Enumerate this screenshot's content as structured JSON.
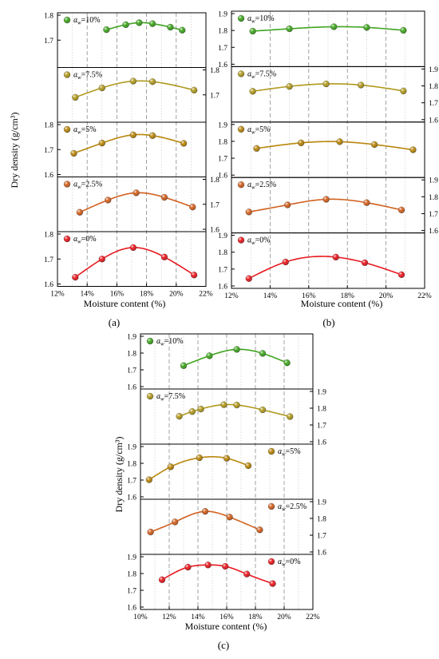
{
  "figure": {
    "ylabel": "Dry density (g/cm³)",
    "xlabel": "Moisture content (%)"
  },
  "chart_data": [
    {
      "type": "scatter",
      "caption": "(a)",
      "xlabel": "Moisture content (%)",
      "ylabel": "Dry density (g/cm³)",
      "xlim": [
        12,
        22
      ],
      "x_ticks": [
        "12%",
        "14%",
        "16%",
        "18%",
        "20%",
        "22%"
      ],
      "grid": "vertical dashed",
      "panels": [
        {
          "label": "a_w=10%",
          "color": "#3fa51e",
          "ylim": [
            1.6,
            1.8
          ],
          "y_ticks": [
            "1.7",
            "1.8"
          ],
          "axis_side": "left",
          "x": [
            15.3,
            16.6,
            17.5,
            18.4,
            19.6,
            20.4
          ],
          "y": [
            1.742,
            1.762,
            1.77,
            1.766,
            1.752,
            1.74
          ]
        },
        {
          "label": "a_w=7.5%",
          "color": "#b09a1e",
          "ylim": [
            1.6,
            1.8
          ],
          "y_ticks": [
            "1.7",
            "1.8"
          ],
          "axis_side": "right",
          "x": [
            13.2,
            15.0,
            17.1,
            18.4,
            21.2
          ],
          "y": [
            1.69,
            1.728,
            1.755,
            1.753,
            1.719
          ]
        },
        {
          "label": "a_w=5%",
          "color": "#b8860b",
          "ylim": [
            1.6,
            1.8
          ],
          "y_ticks": [
            "1.6",
            "1.7",
            "1.8"
          ],
          "axis_side": "left",
          "x": [
            13.1,
            15.0,
            17.1,
            18.4,
            20.5
          ],
          "y": [
            1.685,
            1.726,
            1.759,
            1.756,
            1.725
          ]
        },
        {
          "label": "a_w=2.5%",
          "color": "#d1601e",
          "ylim": [
            1.6,
            1.8
          ],
          "y_ticks": [
            "1.6",
            "1.7",
            "1.8"
          ],
          "axis_side": "right",
          "x": [
            13.5,
            15.4,
            17.3,
            19.2,
            21.1
          ],
          "y": [
            1.668,
            1.717,
            1.746,
            1.728,
            1.689
          ]
        },
        {
          "label": "a_w=0%",
          "color": "#e8191f",
          "ylim": [
            1.6,
            1.8
          ],
          "y_ticks": [
            "1.6",
            "1.7",
            "1.8"
          ],
          "axis_side": "left",
          "x": [
            13.2,
            15.0,
            17.1,
            19.2,
            21.2
          ],
          "y": [
            1.627,
            1.7,
            1.746,
            1.708,
            1.636
          ]
        }
      ]
    },
    {
      "type": "scatter",
      "caption": "(b)",
      "xlabel": "Moisture content (%)",
      "ylabel": "",
      "xlim": [
        12,
        22
      ],
      "x_ticks": [
        "12%",
        "14%",
        "16%",
        "18%",
        "20%",
        "22%"
      ],
      "grid": "vertical dashed",
      "panels": [
        {
          "label": "a_w=10%",
          "color": "#3fa51e",
          "ylim": [
            1.6,
            1.9
          ],
          "y_ticks": [
            "1.6",
            "1.7",
            "1.8",
            "1.9"
          ],
          "axis_side": "left",
          "x": [
            13.1,
            15.0,
            17.3,
            19.0,
            20.9
          ],
          "y": [
            1.796,
            1.81,
            1.822,
            1.818,
            1.801
          ]
        },
        {
          "label": "a_w=7.5%",
          "color": "#b09a1e",
          "ylim": [
            1.6,
            1.9
          ],
          "y_ticks": [
            "1.6",
            "1.7",
            "1.8",
            "1.9"
          ],
          "axis_side": "right",
          "x": [
            13.1,
            15.0,
            16.9,
            18.7,
            20.9
          ],
          "y": [
            1.768,
            1.797,
            1.812,
            1.805,
            1.77
          ]
        },
        {
          "label": "a_w=5%",
          "color": "#b8860b",
          "ylim": [
            1.6,
            1.9
          ],
          "y_ticks": [
            "1.6",
            "1.7",
            "1.8",
            "1.9"
          ],
          "axis_side": "left",
          "x": [
            13.3,
            15.6,
            17.6,
            19.4,
            21.4
          ],
          "y": [
            1.758,
            1.791,
            1.798,
            1.781,
            1.75
          ]
        },
        {
          "label": "a_w=2.5%",
          "color": "#d1601e",
          "ylim": [
            1.6,
            1.9
          ],
          "y_ticks": [
            "1.6",
            "1.7",
            "1.8",
            "1.9"
          ],
          "axis_side": "right",
          "x": [
            12.9,
            14.9,
            16.9,
            19.0,
            20.8
          ],
          "y": [
            1.71,
            1.752,
            1.785,
            1.765,
            1.722
          ]
        },
        {
          "label": "a_w=0%",
          "color": "#e8191f",
          "ylim": [
            1.6,
            1.9
          ],
          "y_ticks": [
            "1.6",
            "1.7",
            "1.8",
            "1.9"
          ],
          "axis_side": "left",
          "x": [
            12.9,
            14.8,
            17.4,
            18.9,
            20.8
          ],
          "y": [
            1.644,
            1.742,
            1.771,
            1.738,
            1.667
          ]
        }
      ]
    },
    {
      "type": "scatter",
      "caption": "(c)",
      "xlabel": "Moisture content (%)",
      "ylabel": "Dry density (g/cm³)",
      "xlim": [
        10,
        22
      ],
      "x_ticks": [
        "10%",
        "12%",
        "14%",
        "16%",
        "18%",
        "20%",
        "22%"
      ],
      "grid": "vertical dashed",
      "panels": [
        {
          "label": "a_w=10%",
          "color": "#3fa51e",
          "ylim": [
            1.6,
            1.9
          ],
          "y_ticks": [
            "1.6",
            "1.7",
            "1.8",
            "1.9"
          ],
          "axis_side": "left",
          "x": [
            13.0,
            14.8,
            16.7,
            18.5,
            20.2
          ],
          "y": [
            1.725,
            1.784,
            1.822,
            1.798,
            1.742
          ]
        },
        {
          "label": "a_w=7.5%",
          "color": "#b09a1e",
          "ylim": [
            1.6,
            1.9
          ],
          "y_ticks": [
            "1.6",
            "1.7",
            "1.8",
            "1.9"
          ],
          "axis_side": "right",
          "x": [
            12.7,
            13.6,
            14.2,
            15.8,
            16.7,
            18.5,
            20.4
          ],
          "y": [
            1.752,
            1.78,
            1.795,
            1.821,
            1.819,
            1.79,
            1.75
          ]
        },
        {
          "label": "a_w=5%",
          "color": "#b8860b",
          "ylim": [
            1.6,
            1.9
          ],
          "y_ticks": [
            "1.6",
            "1.7",
            "1.8",
            "1.9"
          ],
          "axis_side": "left",
          "x": [
            10.6,
            12.1,
            14.1,
            16.0,
            17.5
          ],
          "y": [
            1.702,
            1.779,
            1.833,
            1.83,
            1.786
          ]
        },
        {
          "label": "a_w=2.5%",
          "color": "#d1601e",
          "ylim": [
            1.6,
            1.9
          ],
          "y_ticks": [
            "1.6",
            "1.7",
            "1.8",
            "1.9"
          ],
          "axis_side": "right",
          "x": [
            10.7,
            12.4,
            14.5,
            16.2,
            18.3
          ],
          "y": [
            1.719,
            1.779,
            1.842,
            1.808,
            1.732
          ]
        },
        {
          "label": "a_w=0%",
          "color": "#e8191f",
          "ylim": [
            1.6,
            1.9
          ],
          "y_ticks": [
            "1.6",
            "1.7",
            "1.8",
            "1.9"
          ],
          "axis_side": "left",
          "x": [
            11.5,
            13.3,
            14.7,
            15.9,
            17.4,
            19.2
          ],
          "y": [
            1.763,
            1.838,
            1.851,
            1.843,
            1.797,
            1.74
          ]
        }
      ]
    }
  ]
}
